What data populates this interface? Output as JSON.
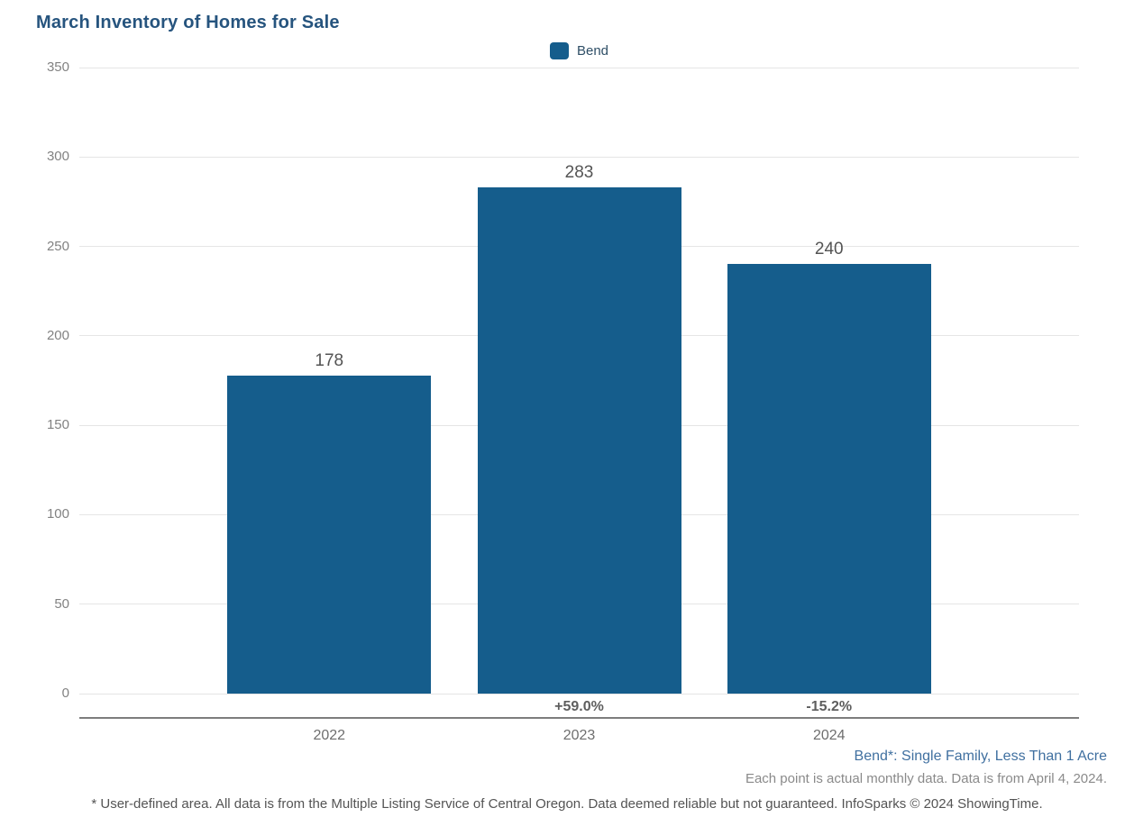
{
  "chart_data": {
    "type": "bar",
    "title": "March Inventory of Homes for Sale",
    "legend": "Bend",
    "legend_position": "top-center",
    "categories": [
      "2022",
      "2023",
      "2024"
    ],
    "values": [
      178,
      283,
      240
    ],
    "pct_change": [
      "",
      "+59.0%",
      "-15.2%"
    ],
    "ylim": [
      0,
      350
    ],
    "yticks": [
      0,
      50,
      100,
      150,
      200,
      250,
      300,
      350
    ],
    "grid": "horizontal",
    "bar_color": "#155D8C",
    "title_color": "#26547E",
    "gridline_color": "#e5e5e5",
    "axis_line_color": "#7d7d7d"
  },
  "footnotes": {
    "series_note": "Bend*: Single Family, Less Than 1 Acre",
    "data_note": "Each point is actual monthly data. Data is from April 4, 2024.",
    "disclaimer": "* User-defined area. All data is from the Multiple Listing Service of Central Oregon. Data deemed reliable but not guaranteed. InfoSparks © 2024 ShowingTime."
  }
}
